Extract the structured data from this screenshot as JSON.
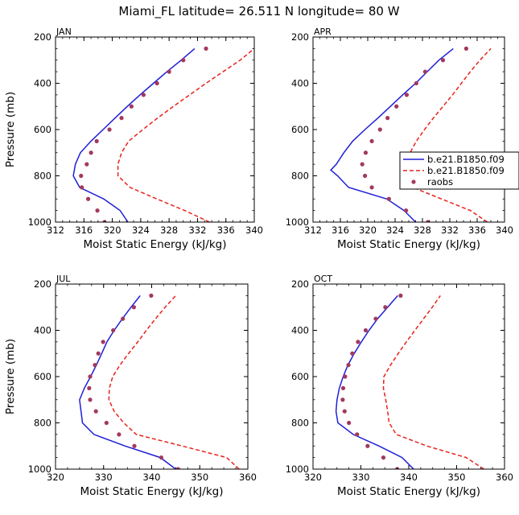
{
  "figure": {
    "title": "Miami_FL  latitude= 26.511 N longitude= 80 W"
  },
  "legend": {
    "placement": "right of APR panel",
    "entries": [
      "b.e21.B1850.f09",
      "b.e21.B1850.f09",
      "raobs"
    ]
  },
  "colors": {
    "model_1": "#1f1fd6",
    "model_2": "#e8221c",
    "raobs": "#a3385f"
  },
  "chart_data": [
    {
      "type": "line",
      "panel_label": "JAN",
      "xlabel": "Moist Static Energy (kJ/kg)",
      "ylabel": "Pressure (mb)",
      "xlim": [
        312,
        340
      ],
      "ylim": [
        1000,
        200
      ],
      "xticks": [
        312,
        316,
        320,
        324,
        328,
        332,
        336,
        340
      ],
      "yticks": [
        200,
        400,
        600,
        800,
        1000
      ],
      "grid": false,
      "pressure": [
        1000,
        950,
        900,
        850,
        800,
        750,
        700,
        650,
        600,
        550,
        500,
        450,
        400,
        350,
        300,
        250
      ],
      "series": [
        {
          "name": "b.e21.B1850.f09",
          "style": "solid",
          "values": [
            322.2,
            321.1,
            318.8,
            315.4,
            314.5,
            314.8,
            315.5,
            317.0,
            318.7,
            320.4,
            322.1,
            323.9,
            325.8,
            327.7,
            329.7,
            331.6
          ]
        },
        {
          "name": "b.e21.B1850.f09",
          "style": "dashed",
          "values": [
            333.7,
            330.2,
            326.3,
            322.5,
            320.8,
            320.8,
            321.3,
            322.3,
            324.3,
            326.4,
            328.6,
            330.9,
            333.2,
            335.6,
            338.0,
            340.0
          ]
        },
        {
          "name": "raobs",
          "style": "points",
          "values": [
            318.9,
            317.9,
            316.6,
            315.7,
            315.6,
            316.4,
            317.0,
            317.8,
            319.6,
            321.3,
            322.7,
            324.4,
            326.3,
            328.0,
            330.0,
            333.2
          ]
        }
      ]
    },
    {
      "type": "line",
      "panel_label": "APR",
      "xlabel": "Moist Static Energy (kJ/kg)",
      "ylabel": "",
      "xlim": [
        312,
        340
      ],
      "ylim": [
        1000,
        200
      ],
      "xticks": [
        312,
        316,
        320,
        324,
        328,
        332,
        336,
        340
      ],
      "yticks": [
        200,
        400,
        600,
        800,
        1000
      ],
      "grid": false,
      "pressure": [
        1000,
        950,
        900,
        850,
        800,
        775,
        750,
        700,
        650,
        600,
        550,
        500,
        450,
        400,
        350,
        300,
        250
      ],
      "series": [
        {
          "name": "b.e21.B1850.f09",
          "style": "solid",
          "values": [
            327.0,
            325.3,
            322.8,
            317.2,
            315.6,
            314.6,
            315.4,
            316.5,
            317.8,
            319.6,
            321.5,
            323.3,
            325.1,
            327.0,
            328.7,
            330.4,
            332.5
          ]
        },
        {
          "name": "b.e21.B1850.f09",
          "style": "dashed",
          "values": [
            337.5,
            335.0,
            330.8,
            326.6,
            325.3,
            325.3,
            325.4,
            326.2,
            327.1,
            328.3,
            329.6,
            331.0,
            332.4,
            333.7,
            335.0,
            336.4,
            338.0
          ]
        },
        {
          "name": "raobs",
          "style": "points",
          "values": [
            328.8,
            325.6,
            323.1,
            320.6,
            319.6,
            null,
            319.2,
            319.7,
            320.6,
            321.8,
            322.9,
            324.2,
            325.7,
            327.1,
            328.4,
            331.0,
            334.4
          ]
        }
      ]
    },
    {
      "type": "line",
      "panel_label": "JUL",
      "xlabel": "Moist Static Energy (kJ/kg)",
      "ylabel": "Pressure (mb)",
      "xlim": [
        320,
        360
      ],
      "ylim": [
        1000,
        200
      ],
      "xticks": [
        320,
        330,
        340,
        350,
        360
      ],
      "yticks": [
        200,
        400,
        600,
        800,
        1000
      ],
      "grid": false,
      "pressure": [
        1000,
        950,
        900,
        850,
        800,
        750,
        700,
        650,
        600,
        550,
        500,
        450,
        400,
        350,
        300,
        250
      ],
      "series": [
        {
          "name": "b.e21.B1850.f09",
          "style": "solid",
          "values": [
            345.0,
            341.8,
            334.5,
            328.0,
            325.6,
            325.3,
            325.0,
            326.0,
            327.3,
            328.5,
            329.6,
            330.7,
            332.2,
            333.9,
            335.7,
            337.6
          ]
        },
        {
          "name": "b.e21.B1850.f09",
          "style": "dashed",
          "values": [
            358.2,
            355.6,
            346.4,
            336.8,
            334.2,
            332.2,
            331.1,
            331.2,
            331.9,
            333.4,
            335.2,
            337.1,
            338.9,
            340.8,
            342.8,
            345.0
          ]
        },
        {
          "name": "raobs",
          "style": "points",
          "values": [
            345.5,
            342.0,
            336.4,
            333.2,
            330.6,
            328.4,
            327.2,
            327.0,
            327.2,
            328.2,
            328.9,
            329.9,
            332.0,
            334.0,
            336.3,
            339.9
          ]
        }
      ]
    },
    {
      "type": "line",
      "panel_label": "OCT",
      "xlabel": "Moist Static Energy (kJ/kg)",
      "ylabel": "",
      "xlim": [
        320,
        360
      ],
      "ylim": [
        1000,
        200
      ],
      "xticks": [
        320,
        330,
        340,
        350,
        360
      ],
      "yticks": [
        200,
        400,
        600,
        800,
        1000
      ],
      "grid": false,
      "pressure": [
        1000,
        950,
        900,
        850,
        800,
        750,
        700,
        650,
        600,
        550,
        500,
        450,
        400,
        350,
        300,
        250
      ],
      "series": [
        {
          "name": "b.e21.B1850.f09",
          "style": "solid",
          "values": [
            341.0,
            338.6,
            333.8,
            328.4,
            325.2,
            324.8,
            325.0,
            325.5,
            326.3,
            327.3,
            328.6,
            330.1,
            331.7,
            333.5,
            335.6,
            337.7
          ]
        },
        {
          "name": "b.e21.B1850.f09",
          "style": "dashed",
          "values": [
            355.7,
            352.0,
            343.8,
            337.4,
            335.9,
            335.6,
            335.2,
            334.7,
            334.8,
            336.2,
            337.8,
            339.5,
            341.3,
            343.1,
            344.9,
            346.6
          ]
        },
        {
          "name": "raobs",
          "style": "points",
          "values": [
            337.6,
            334.7,
            331.4,
            329.2,
            327.5,
            326.6,
            326.2,
            326.3,
            326.7,
            327.4,
            328.2,
            329.4,
            331.0,
            333.1,
            335.1,
            338.3
          ]
        }
      ]
    }
  ]
}
